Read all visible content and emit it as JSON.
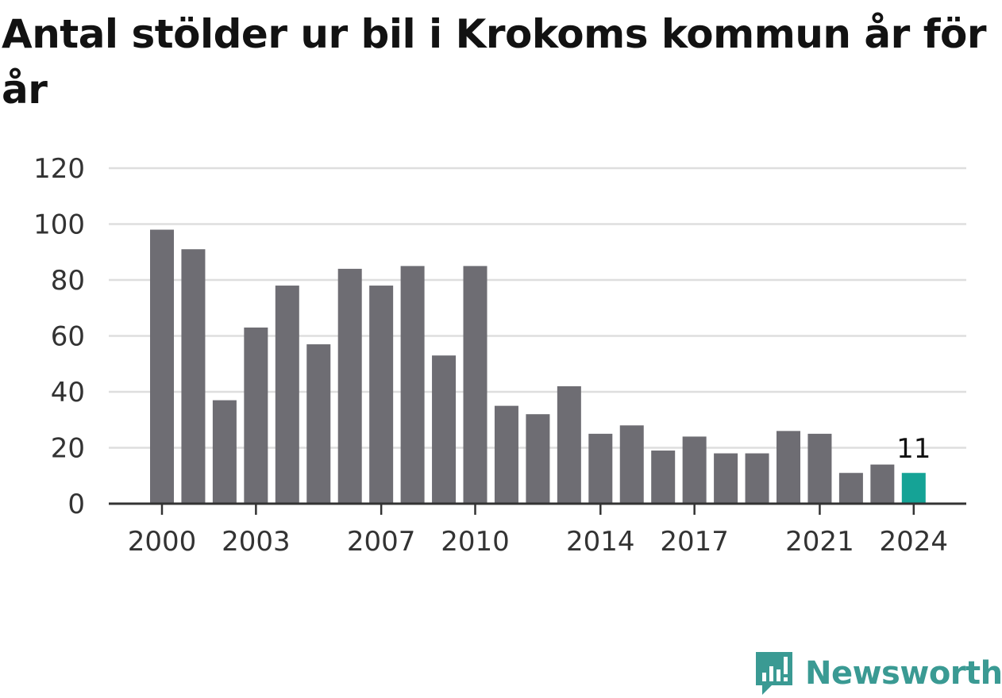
{
  "title": "Antal stölder ur bil i Krokoms kommun år för år",
  "brand": "Newsworthy",
  "colors": {
    "bar": "#6e6d73",
    "highlight": "#15a396",
    "grid": "#dedede",
    "axis": "#333333",
    "brand": "#3a9a93"
  },
  "chart_data": {
    "type": "bar",
    "title": "Antal stölder ur bil i Krokoms kommun år för år",
    "xlabel": "",
    "ylabel": "",
    "categories": [
      "2000",
      "2001",
      "2002",
      "2003",
      "2004",
      "2005",
      "2006",
      "2007",
      "2008",
      "2009",
      "2010",
      "2011",
      "2012",
      "2013",
      "2014",
      "2015",
      "2016",
      "2017",
      "2018",
      "2019",
      "2020",
      "2021",
      "2022",
      "2023",
      "2024"
    ],
    "values": [
      98,
      91,
      37,
      63,
      78,
      57,
      84,
      78,
      85,
      53,
      85,
      35,
      32,
      42,
      25,
      28,
      19,
      24,
      18,
      18,
      26,
      25,
      11,
      14,
      11
    ],
    "x_tick_labels": [
      "2000",
      "2003",
      "2007",
      "2010",
      "2014",
      "2017",
      "2021",
      "2024"
    ],
    "y_ticks": [
      0,
      20,
      40,
      60,
      80,
      100,
      120
    ],
    "ylim": [
      0,
      120
    ],
    "grid": true,
    "legend": "none",
    "highlight": {
      "category": "2024",
      "label": "11"
    }
  }
}
